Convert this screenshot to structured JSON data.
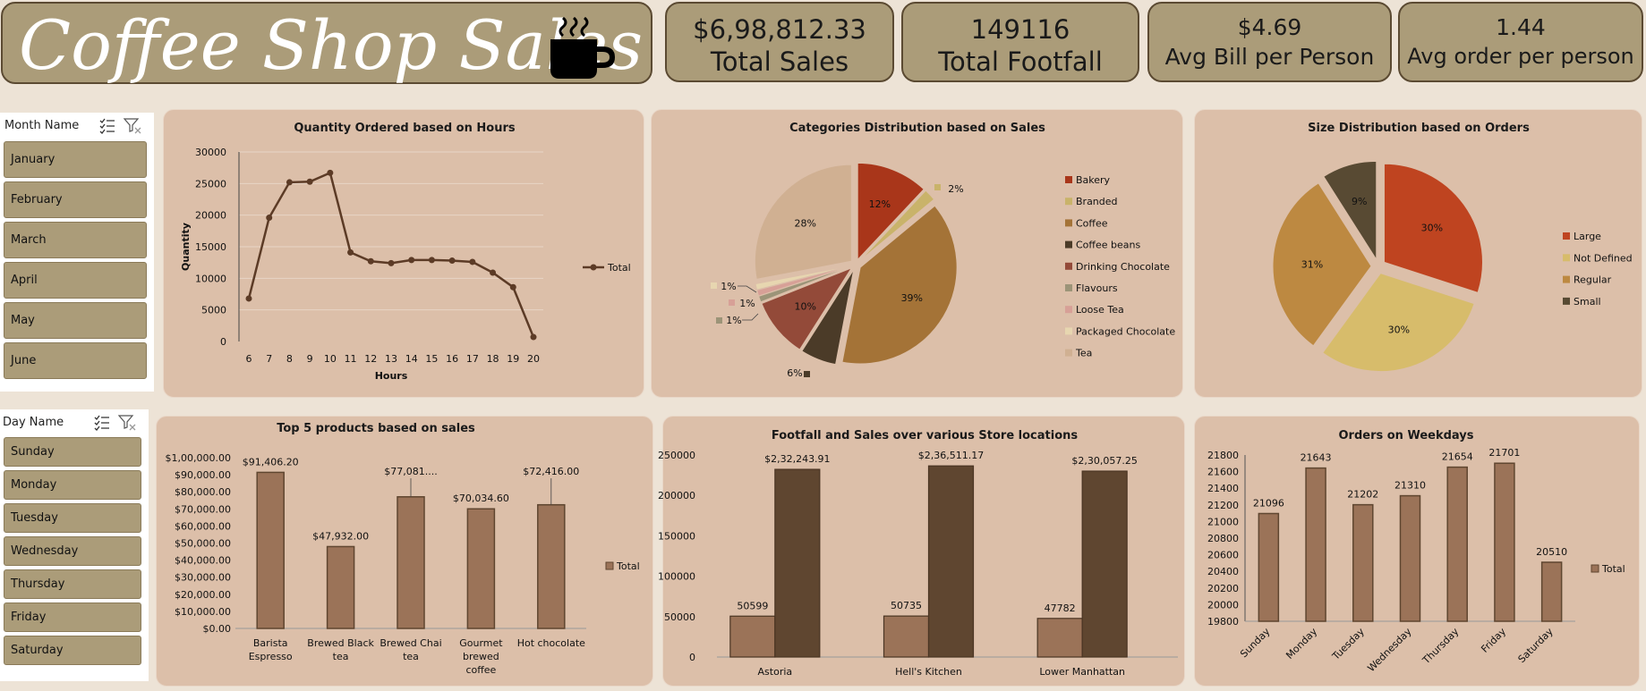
{
  "header": {
    "title": "Coffee Shop Sales",
    "icon": "coffee-cup-icon"
  },
  "kpis": [
    {
      "value": "$6,98,812.33",
      "label": "Total Sales"
    },
    {
      "value": "149116",
      "label": "Total Footfall"
    },
    {
      "value": "$4.69",
      "label": "Avg Bill per Person"
    },
    {
      "value": "1.44",
      "label": "Avg order per person"
    }
  ],
  "month_slicer": {
    "title": "Month Name",
    "items": [
      "January",
      "February",
      "March",
      "April",
      "May",
      "June"
    ]
  },
  "day_slicer": {
    "title": "Day Name",
    "items": [
      "Sunday",
      "Monday",
      "Tuesday",
      "Wednesday",
      "Thursday",
      "Friday",
      "Saturday"
    ]
  },
  "colors": {
    "panel": "#dcbfa9",
    "line": "#5c3b26",
    "bar": "#9b7358",
    "bar_dark": "#5f4630",
    "kpi": "#ab9c79"
  },
  "chart_data": [
    {
      "id": "hours",
      "type": "line",
      "title": "Quantity Ordered based on Hours",
      "xlabel": "Hours",
      "ylabel": "Quantity",
      "x": [
        6,
        7,
        8,
        9,
        10,
        11,
        12,
        13,
        14,
        15,
        16,
        17,
        18,
        19,
        20
      ],
      "series": [
        {
          "name": "Total",
          "values": [
            6800,
            19600,
            25200,
            25300,
            26700,
            14100,
            12700,
            12400,
            12900,
            12900,
            12800,
            12600,
            10900,
            8600,
            700
          ]
        }
      ],
      "ylim": [
        0,
        30000
      ],
      "yticks": [
        "0",
        "5000",
        "10000",
        "15000",
        "20000",
        "25000",
        "30000"
      ],
      "legend": "right",
      "grid": true
    },
    {
      "id": "categories",
      "type": "pie",
      "title": "Categories Distribution based on Sales",
      "labels": [
        "Bakery",
        "Branded",
        "Coffee",
        "Coffee beans",
        "Drinking Chocolate",
        "Flavours",
        "Loose Tea",
        "Packaged Chocolate",
        "Tea"
      ],
      "values": [
        12,
        2,
        39,
        6,
        10,
        1,
        1,
        1,
        28
      ],
      "value_labels": [
        "12%",
        "2%",
        "39%",
        "6%",
        "10%",
        "1%",
        "1%",
        "1%",
        "28%"
      ],
      "colors": [
        "#a9361a",
        "#c9b36a",
        "#a47337",
        "#4b3b28",
        "#934a39",
        "#9c9478",
        "#d7a097",
        "#e7d6b0",
        "#d0b092"
      ],
      "legend": "right"
    },
    {
      "id": "size",
      "type": "pie",
      "title": "Size Distribution based on Orders",
      "labels": [
        "Large",
        "Not Defined",
        "Regular",
        "Small"
      ],
      "values": [
        30,
        30,
        31,
        9
      ],
      "value_labels": [
        "30%",
        "30%",
        "31%",
        "9%"
      ],
      "colors": [
        "#bf4420",
        "#d7bc6b",
        "#bd8941",
        "#584a33"
      ],
      "legend": "right"
    },
    {
      "id": "top5",
      "type": "bar",
      "title": "Top 5 products based on sales",
      "categories": [
        "Barista Espresso",
        "Brewed Black tea",
        "Brewed Chai tea",
        "Gourmet brewed coffee",
        "Hot chocolate"
      ],
      "series": [
        {
          "name": "Total",
          "values": [
            91406.2,
            47932.0,
            77081.0,
            70034.6,
            72416.0
          ]
        }
      ],
      "value_labels": [
        "$91,406.20",
        "$47,932.00",
        "$77,081....",
        "$70,034.60",
        "$72,416.00"
      ],
      "ylim": [
        0,
        100000
      ],
      "yticks": [
        "$0.00",
        "$10,000.00",
        "$20,000.00",
        "$30,000.00",
        "$40,000.00",
        "$50,000.00",
        "$60,000.00",
        "$70,000.00",
        "$80,000.00",
        "$90,000.00",
        "$1,00,000.00"
      ],
      "legend": "right"
    },
    {
      "id": "stores",
      "type": "bar",
      "title": "Footfall and Sales over various Store locations",
      "categories": [
        "Astoria",
        "Hell's Kitchen",
        "Lower Manhattan"
      ],
      "series": [
        {
          "values": [
            50599,
            50735,
            47782
          ],
          "labels": [
            "50599",
            "50735",
            "47782"
          ]
        },
        {
          "values": [
            232243.91,
            236511.17,
            230057.25
          ],
          "labels": [
            "$2,32,243.91",
            "$2,36,511.17",
            "$2,30,057.25"
          ]
        }
      ],
      "ylim": [
        0,
        250000
      ],
      "yticks": [
        "0",
        "50000",
        "100000",
        "150000",
        "200000",
        "250000"
      ]
    },
    {
      "id": "weekdays",
      "type": "bar",
      "title": "Orders on Weekdays",
      "categories": [
        "Sunday",
        "Monday",
        "Tuesday",
        "Wednesday",
        "Thursday",
        "Friday",
        "Saturday"
      ],
      "series": [
        {
          "name": "Total",
          "values": [
            21096,
            21643,
            21202,
            21310,
            21654,
            21701,
            20510
          ]
        }
      ],
      "value_labels": [
        "21096",
        "21643",
        "21202",
        "21310",
        "21654",
        "21701",
        "20510"
      ],
      "ylim": [
        19800,
        21800
      ],
      "yticks": [
        "19800",
        "20000",
        "20200",
        "20400",
        "20600",
        "20800",
        "21000",
        "21200",
        "21400",
        "21600",
        "21800"
      ],
      "legend": "right"
    }
  ]
}
